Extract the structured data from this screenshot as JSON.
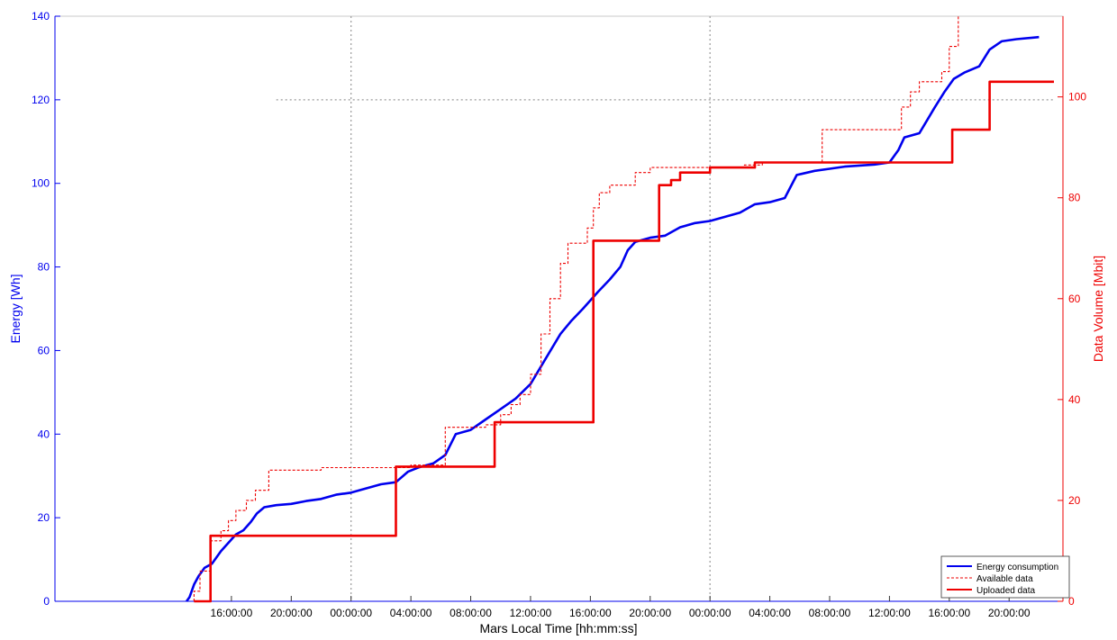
{
  "chart_data": {
    "type": "line",
    "title": "",
    "xlabel": "Mars Local Time [hh:mm:ss]",
    "ylabel_left": "Energy [Wh]",
    "ylabel_right": "Data Volume [Mbit]",
    "x_unit": "hours elapsed from first sol 00:00:00 (day 1 = 0-24, day 2 = 24-48, day 3 = 48-72)",
    "xlim": [
      4.2,
      71.6
    ],
    "x_ticks": [
      16,
      20,
      24,
      28,
      32,
      36,
      40,
      44,
      48,
      52,
      56,
      60,
      64,
      68
    ],
    "x_tick_labels": [
      "16:00:00",
      "20:00:00",
      "00:00:00",
      "04:00:00",
      "08:00:00",
      "12:00:00",
      "16:00:00",
      "20:00:00",
      "00:00:00",
      "04:00:00",
      "08:00:00",
      "12:00:00",
      "16:00:00",
      "20:00:00"
    ],
    "ylim_left": [
      0,
      140
    ],
    "y_ticks_left": [
      0,
      20,
      40,
      60,
      80,
      100,
      120,
      140
    ],
    "ylim_right": [
      0,
      116
    ],
    "y_ticks_right": [
      0,
      20,
      40,
      60,
      80,
      100
    ],
    "grid": {
      "vertical_dotted_at_x": [
        24,
        48
      ],
      "horizontal_dotted_at_energy": 120
    },
    "legend_position": "bottom-right",
    "colors": {
      "energy": "#0000ee",
      "data": "#ee0000",
      "grid": "#9a9a9a"
    },
    "series": [
      {
        "name": "Energy consumption",
        "axis": "left",
        "style": "solid-blue",
        "points": [
          [
            13.0,
            0
          ],
          [
            13.2,
            1
          ],
          [
            13.5,
            4
          ],
          [
            13.8,
            6
          ],
          [
            14.2,
            8
          ],
          [
            14.7,
            9
          ],
          [
            15.3,
            12
          ],
          [
            15.8,
            14
          ],
          [
            16.3,
            16
          ],
          [
            16.8,
            17
          ],
          [
            17.3,
            19
          ],
          [
            17.7,
            21
          ],
          [
            18.2,
            22.5
          ],
          [
            19.0,
            23
          ],
          [
            20.0,
            23.3
          ],
          [
            21.0,
            24
          ],
          [
            22.0,
            24.5
          ],
          [
            23.0,
            25.5
          ],
          [
            24.0,
            26
          ],
          [
            25.0,
            27
          ],
          [
            26.0,
            28
          ],
          [
            27.0,
            28.5
          ],
          [
            27.8,
            31
          ],
          [
            28.5,
            32
          ],
          [
            29.5,
            33
          ],
          [
            30.3,
            35
          ],
          [
            31.0,
            40
          ],
          [
            32.0,
            41
          ],
          [
            33.0,
            43.5
          ],
          [
            34.0,
            46
          ],
          [
            35.0,
            48.5
          ],
          [
            36.0,
            52
          ],
          [
            37.0,
            58
          ],
          [
            38.0,
            64
          ],
          [
            38.7,
            67
          ],
          [
            39.5,
            70
          ],
          [
            40.5,
            74
          ],
          [
            41.3,
            77
          ],
          [
            42.0,
            80
          ],
          [
            42.5,
            84
          ],
          [
            43.0,
            86
          ],
          [
            44.0,
            87
          ],
          [
            45.0,
            87.5
          ],
          [
            46.0,
            89.5
          ],
          [
            47.0,
            90.5
          ],
          [
            48.0,
            91
          ],
          [
            49.0,
            92
          ],
          [
            50.0,
            93
          ],
          [
            51.0,
            95
          ],
          [
            52.0,
            95.5
          ],
          [
            53.0,
            96.5
          ],
          [
            53.8,
            102
          ],
          [
            55.0,
            103
          ],
          [
            56.0,
            103.5
          ],
          [
            57.0,
            104
          ],
          [
            59.0,
            104.5
          ],
          [
            60.0,
            105
          ],
          [
            60.6,
            108
          ],
          [
            61.0,
            111
          ],
          [
            62.0,
            112
          ],
          [
            62.5,
            115
          ],
          [
            63.0,
            118
          ],
          [
            63.7,
            122
          ],
          [
            64.3,
            125
          ],
          [
            65.0,
            126.5
          ],
          [
            66.0,
            128
          ],
          [
            66.7,
            132
          ],
          [
            67.5,
            134
          ],
          [
            68.5,
            134.5
          ],
          [
            70.0,
            135
          ]
        ]
      },
      {
        "name": "Available data",
        "axis": "right",
        "style": "dashed-red-step",
        "points": [
          [
            13.5,
            0
          ],
          [
            13.5,
            2
          ],
          [
            13.9,
            2
          ],
          [
            13.9,
            6
          ],
          [
            14.6,
            6
          ],
          [
            14.6,
            12
          ],
          [
            15.3,
            12
          ],
          [
            15.3,
            14
          ],
          [
            15.8,
            14
          ],
          [
            15.8,
            16
          ],
          [
            16.3,
            16
          ],
          [
            16.3,
            18
          ],
          [
            17.0,
            18
          ],
          [
            17.0,
            20
          ],
          [
            17.6,
            20
          ],
          [
            17.6,
            22
          ],
          [
            18.5,
            22
          ],
          [
            18.5,
            26
          ],
          [
            22.0,
            26
          ],
          [
            22.0,
            26.5
          ],
          [
            28.0,
            26.5
          ],
          [
            28.0,
            27
          ],
          [
            30.3,
            27
          ],
          [
            30.3,
            34.5
          ],
          [
            33.0,
            34.5
          ],
          [
            33.0,
            35
          ],
          [
            34.0,
            35
          ],
          [
            34.0,
            37
          ],
          [
            34.7,
            37
          ],
          [
            34.7,
            39
          ],
          [
            35.3,
            39
          ],
          [
            35.3,
            41
          ],
          [
            36.0,
            41
          ],
          [
            36.0,
            45
          ],
          [
            36.7,
            45
          ],
          [
            36.7,
            53
          ],
          [
            37.3,
            53
          ],
          [
            37.3,
            60
          ],
          [
            38.0,
            60
          ],
          [
            38.0,
            67
          ],
          [
            38.5,
            67
          ],
          [
            38.5,
            71
          ],
          [
            39.8,
            71
          ],
          [
            39.8,
            74
          ],
          [
            40.2,
            74
          ],
          [
            40.2,
            78
          ],
          [
            40.6,
            78
          ],
          [
            40.6,
            81
          ],
          [
            41.3,
            81
          ],
          [
            41.3,
            82.5
          ],
          [
            43.0,
            82.5
          ],
          [
            43.0,
            85
          ],
          [
            44.0,
            85
          ],
          [
            44.0,
            86
          ],
          [
            45.0,
            86
          ],
          [
            50.3,
            86
          ],
          [
            50.3,
            86.5
          ],
          [
            51.5,
            86.5
          ],
          [
            51.5,
            87
          ],
          [
            55.5,
            87
          ],
          [
            55.5,
            93.5
          ],
          [
            60.8,
            93.5
          ],
          [
            60.8,
            98
          ],
          [
            61.4,
            98
          ],
          [
            61.4,
            101
          ],
          [
            62.0,
            101
          ],
          [
            62.0,
            103
          ],
          [
            63.5,
            103
          ],
          [
            63.5,
            105
          ],
          [
            64.0,
            105
          ],
          [
            64.0,
            110
          ],
          [
            64.6,
            110
          ],
          [
            64.6,
            116
          ]
        ]
      },
      {
        "name": "Uploaded data",
        "axis": "right",
        "style": "solid-red-step",
        "points": [
          [
            13.5,
            0
          ],
          [
            14.6,
            0
          ],
          [
            14.6,
            13
          ],
          [
            27.0,
            13
          ],
          [
            27.0,
            26.7
          ],
          [
            33.6,
            26.7
          ],
          [
            33.6,
            35.5
          ],
          [
            40.2,
            35.5
          ],
          [
            40.2,
            71.5
          ],
          [
            44.6,
            71.5
          ],
          [
            44.6,
            82.5
          ],
          [
            45.4,
            82.5
          ],
          [
            45.4,
            83.5
          ],
          [
            46.0,
            83.5
          ],
          [
            46.0,
            85
          ],
          [
            48.0,
            85
          ],
          [
            48.0,
            86
          ],
          [
            51.0,
            86
          ],
          [
            51.0,
            87
          ],
          [
            64.2,
            87
          ],
          [
            64.2,
            93.5
          ],
          [
            66.7,
            93.5
          ],
          [
            66.7,
            103
          ],
          [
            71.0,
            103
          ]
        ]
      }
    ]
  }
}
